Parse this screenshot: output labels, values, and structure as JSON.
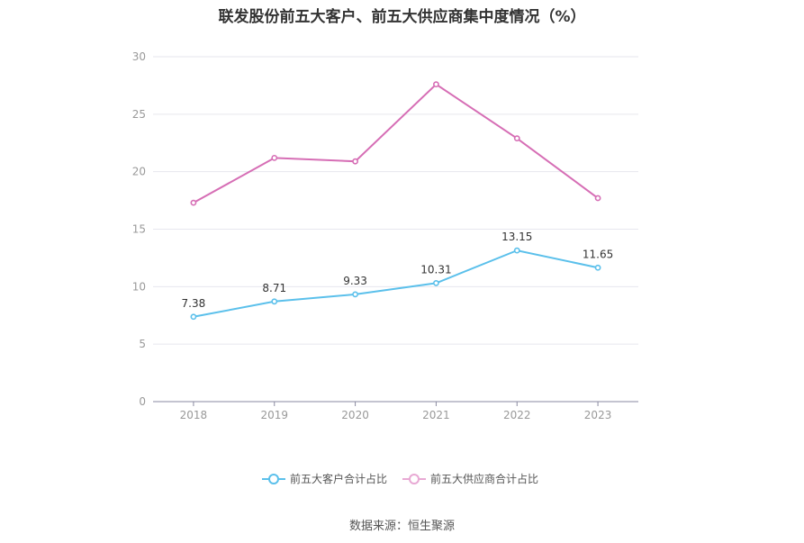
{
  "title": "联发股份前五大客户、前五大供应商集中度情况（%）",
  "source": "数据来源：恒生聚源",
  "chart_data": {
    "type": "line",
    "categories": [
      "2018",
      "2019",
      "2020",
      "2021",
      "2022",
      "2023"
    ],
    "ylim": [
      0,
      30
    ],
    "yticks": [
      0,
      5,
      10,
      15,
      20,
      25,
      30
    ],
    "grid": true,
    "legend_position": "bottom",
    "series": [
      {
        "name": "前五大客户合计占比",
        "color": "#5bc0eb",
        "values": [
          7.38,
          8.71,
          9.33,
          10.31,
          13.15,
          11.65
        ],
        "show_labels": true
      },
      {
        "name": "前五大供应商合计占比",
        "color": "#d66eb5",
        "values": [
          17.3,
          21.2,
          20.9,
          27.6,
          22.9,
          17.7
        ],
        "show_labels": false
      }
    ]
  }
}
